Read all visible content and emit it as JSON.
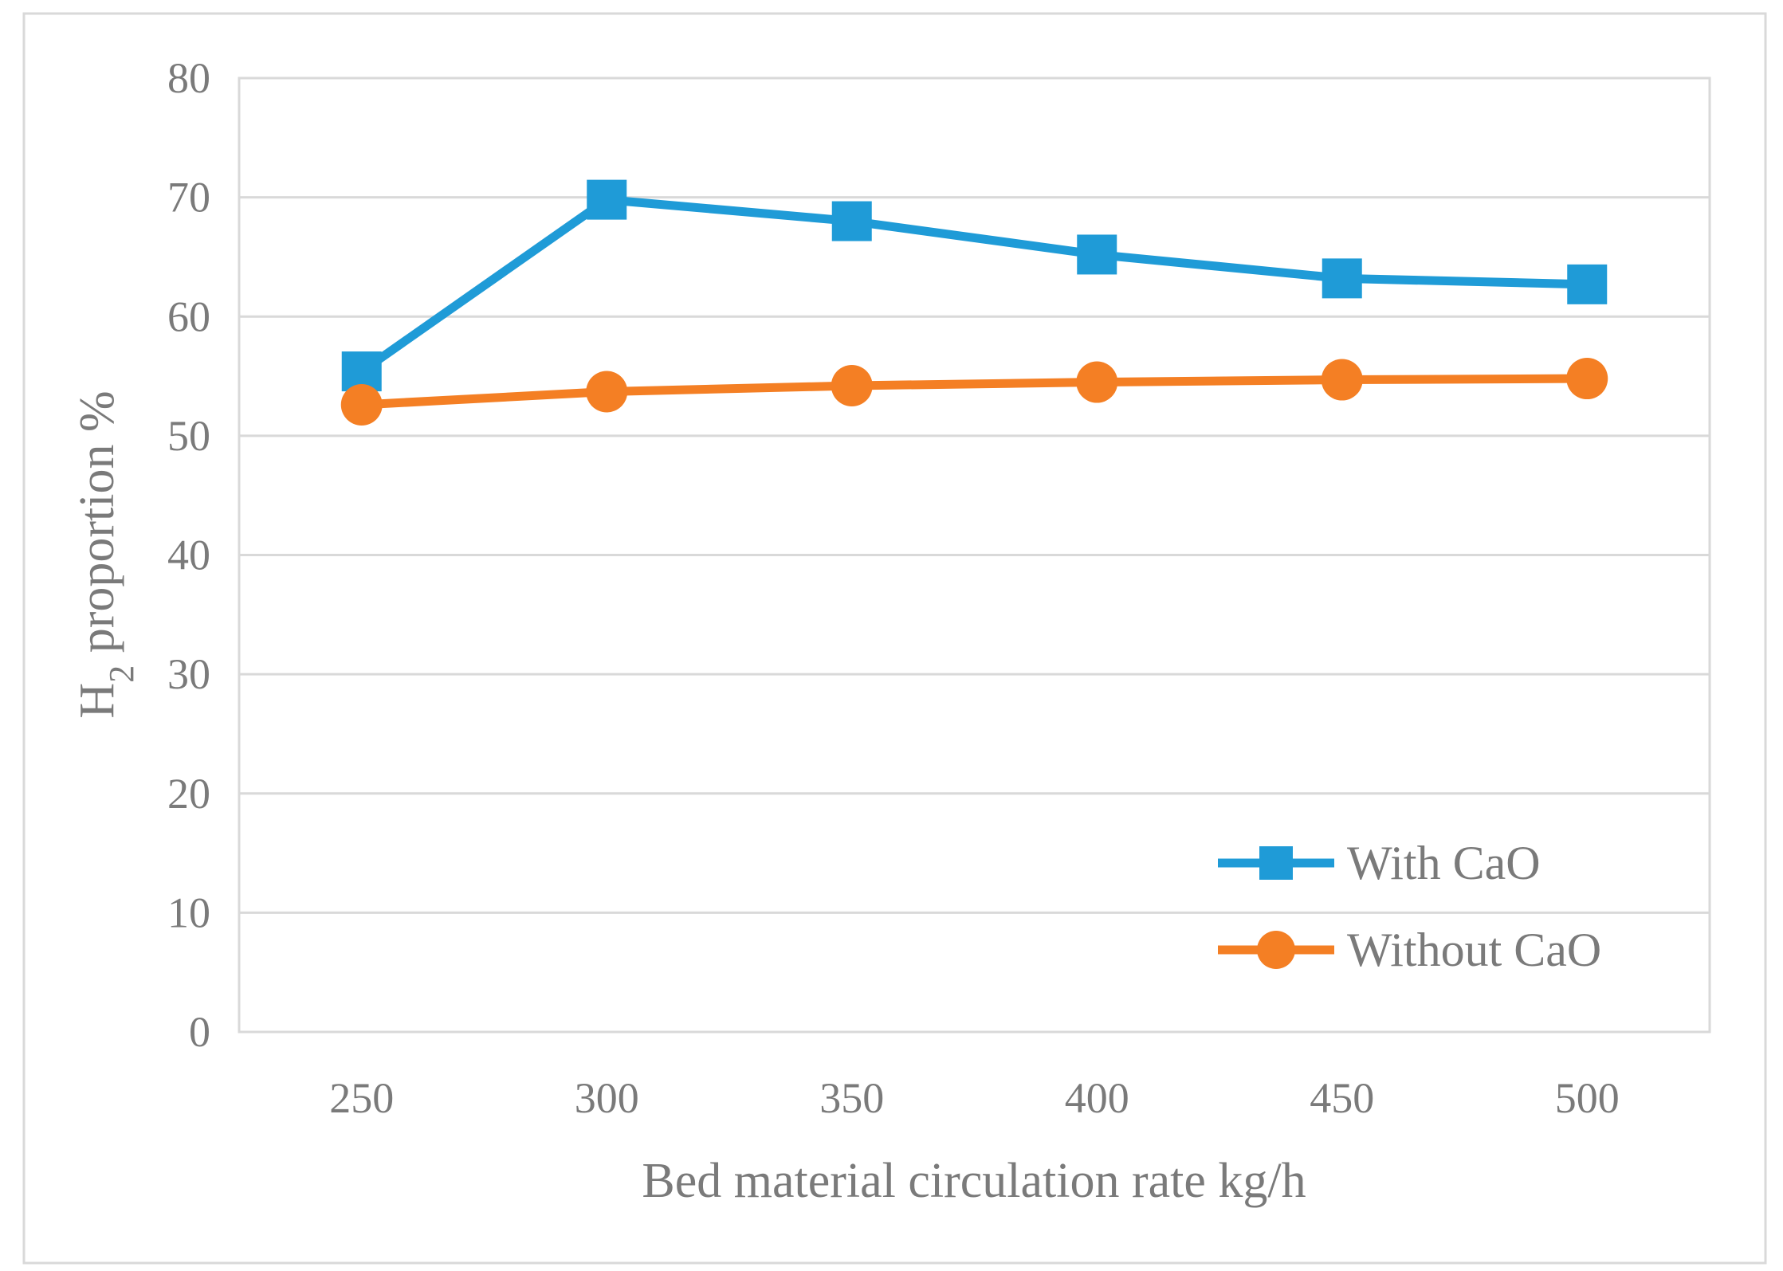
{
  "chart_data": {
    "type": "line",
    "title": "",
    "xlabel": "Bed material circulation rate    kg/h",
    "ylabel": {
      "main": "H",
      "subscript": "2",
      "rest": " proportion    %"
    },
    "categories": [
      "250",
      "300",
      "350",
      "400",
      "450",
      "500"
    ],
    "ylim": [
      0,
      80
    ],
    "yticks": [
      0,
      10,
      20,
      30,
      40,
      50,
      60,
      70,
      80
    ],
    "grid": true,
    "legend_position": "bottom-right",
    "series": [
      {
        "name": "With CaO",
        "marker": "square",
        "color": "#1f9bd7",
        "values": [
          55.4,
          69.8,
          68.0,
          65.2,
          63.2,
          62.7
        ]
      },
      {
        "name": "Without CaO",
        "marker": "circle",
        "color": "#f47f24",
        "values": [
          52.6,
          53.7,
          54.2,
          54.5,
          54.7,
          54.8
        ]
      }
    ]
  }
}
